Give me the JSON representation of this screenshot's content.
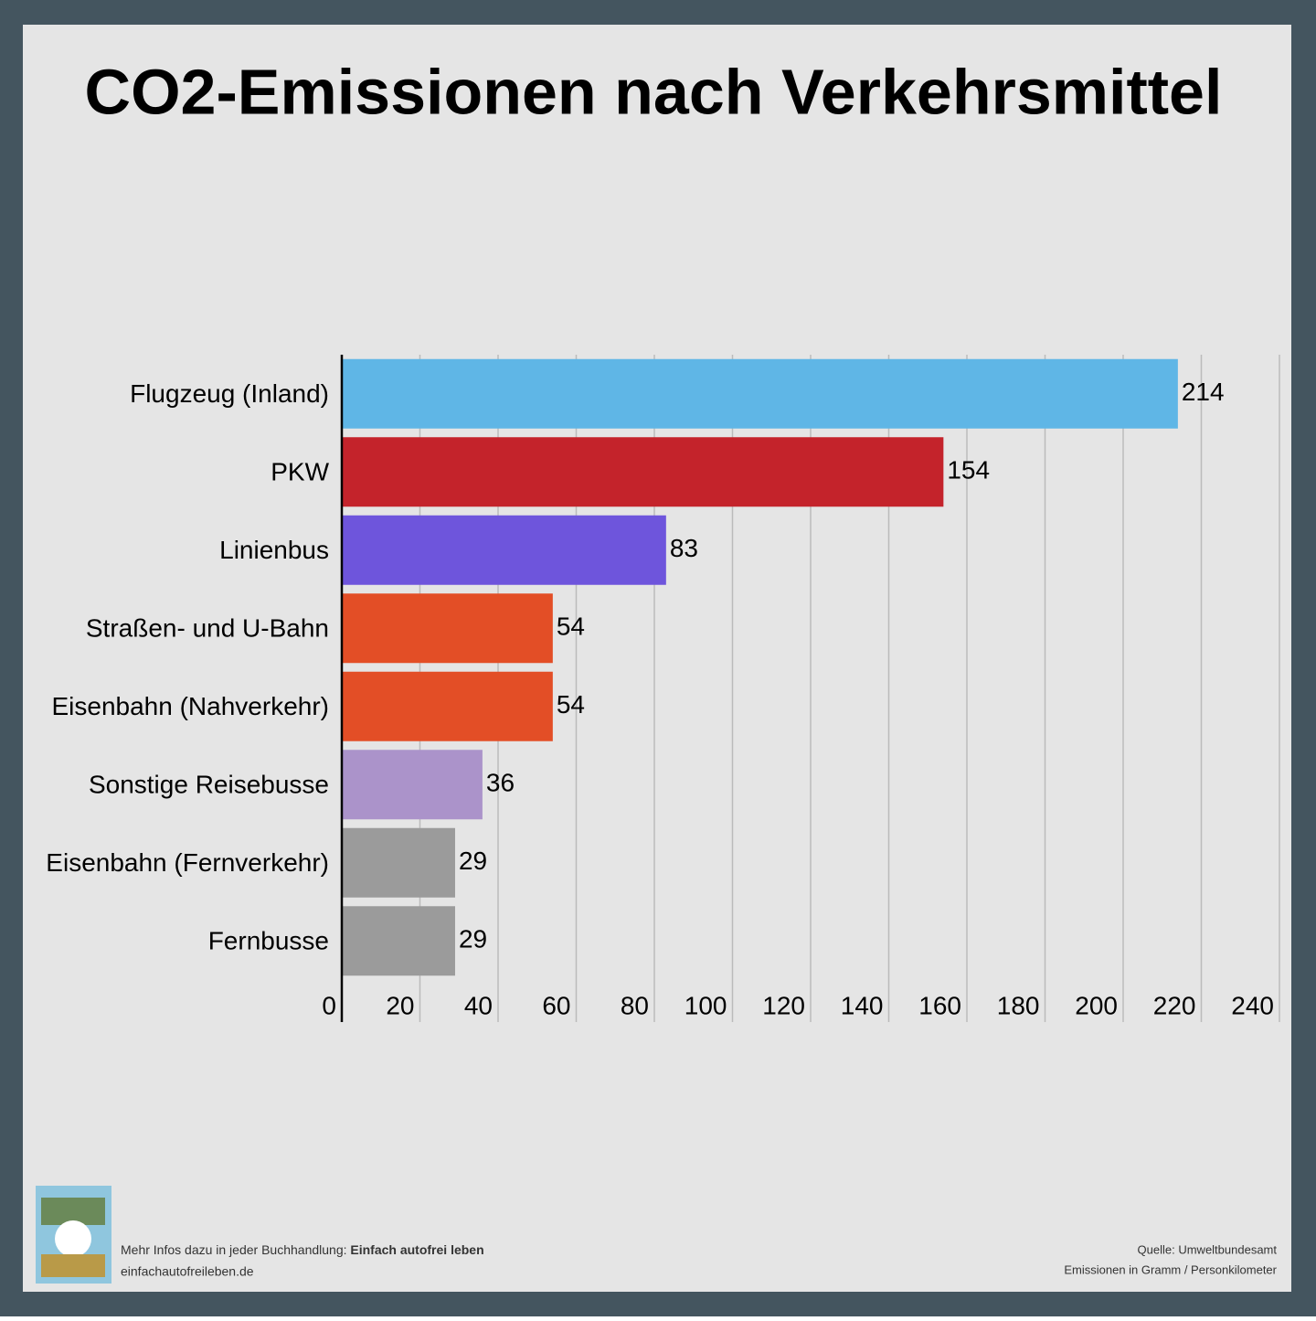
{
  "chart_data": {
    "type": "barh",
    "title": "CO2-Emissionen nach Verkehrsmittel",
    "categories": [
      "Flugzeug (Inland)",
      "PKW",
      "Linienbus",
      "Straßen- und U-Bahn",
      "Eisenbahn (Nahverkehr)",
      "Sonstige Reisebusse",
      "Eisenbahn (Fernverkehr)",
      "Fernbusse"
    ],
    "values": [
      214,
      154,
      83,
      54,
      54,
      36,
      29,
      29
    ],
    "colors": [
      "#5fb6e6",
      "#c4232b",
      "#6e55dc",
      "#e34e26",
      "#e34e26",
      "#ab93ca",
      "#9b9b9b",
      "#9b9b9b"
    ],
    "xlim": [
      0,
      240
    ],
    "xticks": [
      0,
      20,
      40,
      60,
      80,
      100,
      120,
      140,
      160,
      180,
      200,
      220,
      240
    ],
    "grid": true
  },
  "footer": {
    "left": {
      "prefix": "Mehr Infos dazu in jeder Buchhandlung:",
      "bold": "Einfach autofrei leben",
      "url": "einfachautofreileben.de"
    },
    "right": {
      "source": "Quelle: Umweltbundesamt",
      "unit": "Emissionen in Gramm / Personkilometer"
    }
  }
}
